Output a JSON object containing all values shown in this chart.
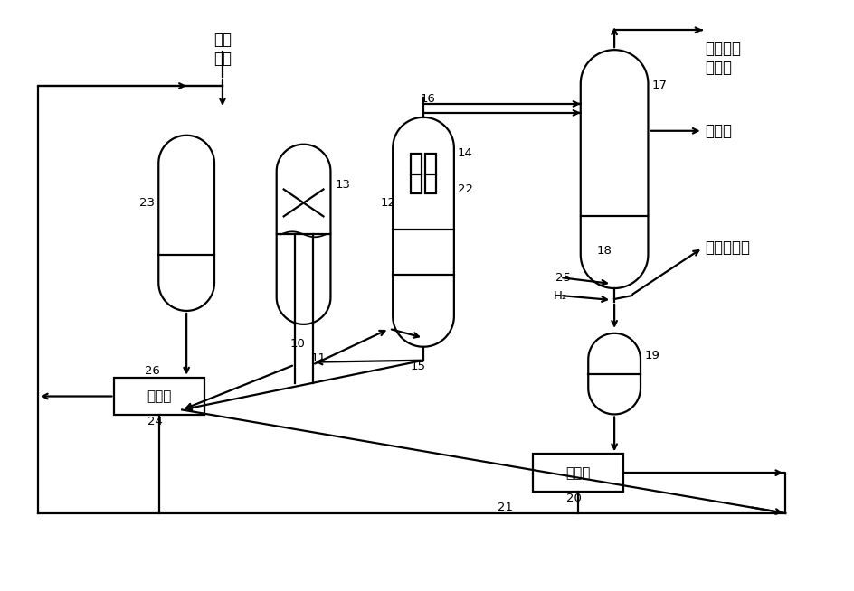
{
  "bg": "#ffffff",
  "lc": "#000000",
  "lw": 1.6,
  "xingjin": "新进\n原料",
  "shenaoyou": "石脑油和\n轻馏份",
  "liuchuwu": "馏出物",
  "tadicxiw": "塔底清洗物",
  "fenliqi": "分离器",
  "H2": "H₂",
  "n10": "10",
  "n11": "11",
  "n12": "12",
  "n13": "13",
  "n14": "14",
  "n15": "15",
  "n16": "16",
  "n17": "17",
  "n18": "18",
  "n19": "19",
  "n20": "20",
  "n21": "21",
  "n22": "22",
  "n23": "23",
  "n24": "24",
  "n25": "25",
  "n26": "26"
}
